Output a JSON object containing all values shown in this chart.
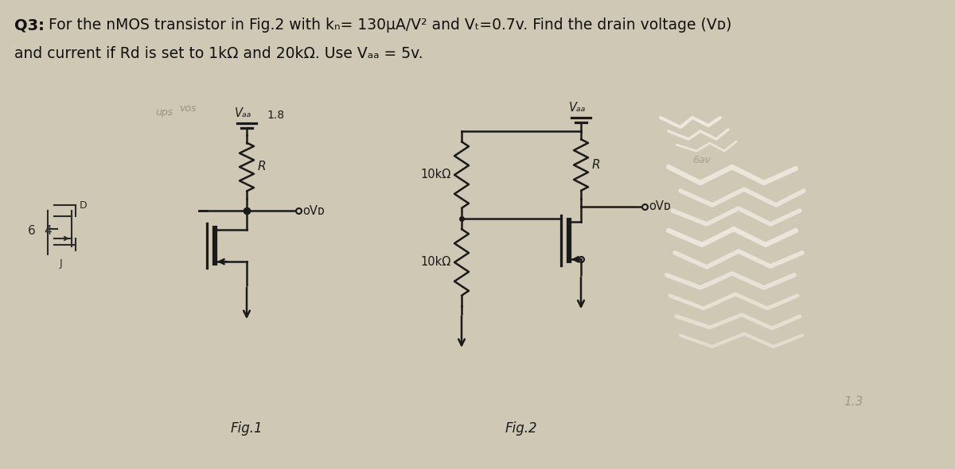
{
  "bg_color": "#cfc8b4",
  "title_bold": "Q3:",
  "title_line1_rest": " For the nMOS transistor in Fig.2 with kₙ= 130μA/V² and Vₜ=0.7v. Find the drain voltage (Vᴅ)",
  "title_line2": "and current if Rd is set to 1kΩ and 20kΩ. Use Vₐₐ = 5v.",
  "fig1_label": "Fig.1",
  "fig2_label": "Fig.2",
  "fig1_vdd_label": "Vₐₐ",
  "fig1_vdd_extra": "1.8",
  "fig2_vdd_label": "Vₐₐ",
  "r_label": "R",
  "res1_label": "10kΩ",
  "res2_label": "10kΩ",
  "vd1_label": "oVᴅ",
  "vd2_label": "oVᴅ",
  "text_color": "#111111",
  "circuit_color": "#1a1a1a",
  "scribble_color": "#e8e2d4",
  "scribble_white": "#f0ece4"
}
